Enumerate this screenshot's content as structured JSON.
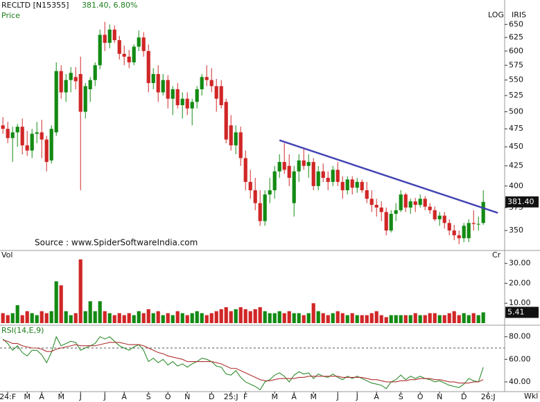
{
  "header": {
    "symbol": "RECLTD [N15355]",
    "quote": "381.40, 6.80%",
    "panel_price": "Price",
    "scale_mode": "LOG",
    "provider": "IRIS",
    "panel_volume": "Vol",
    "volume_unit": "Cr",
    "panel_rsi": "RSI(14,E,9)",
    "source": "Source : www.SpiderSoftwareIndia.com",
    "period": "Wkl"
  },
  "chart_data": [
    {
      "type": "candlestick",
      "log": true,
      "colors": {
        "up": "#138a13",
        "down": "#d02626"
      },
      "xlim": [
        -0.6,
        103.4
      ],
      "ylim": [
        331,
        678
      ],
      "yticks": [
        350,
        375,
        400,
        425,
        450,
        475,
        500,
        525,
        550,
        575,
        600,
        625,
        650
      ],
      "last_close_label": "381.40",
      "trendline": {
        "x": [
          57,
          102
        ],
        "y": [
          459,
          369
        ],
        "color": "#4444b4"
      },
      "open": [
        480,
        475,
        462,
        470,
        478,
        452,
        445,
        468,
        470,
        460,
        432,
        470,
        565,
        530,
        550,
        555,
        560,
        500,
        535,
        550,
        575,
        630,
        615,
        640,
        620,
        595,
        590,
        580,
        608,
        625,
        600,
        545,
        560,
        530,
        550,
        520,
        535,
        510,
        520,
        505,
        515,
        535,
        555,
        550,
        540,
        540,
        515,
        480,
        452,
        470,
        435,
        405,
        395,
        380,
        360,
        390,
        395,
        418,
        430,
        425,
        380,
        418,
        432,
        425,
        430,
        400,
        418,
        410,
        405,
        420,
        405,
        395,
        408,
        398,
        405,
        395,
        385,
        378,
        375,
        370,
        350,
        368,
        372,
        390,
        375,
        382,
        378,
        385,
        376,
        372,
        362,
        366,
        358,
        350,
        345,
        342,
        342,
        358,
        357,
        358
      ],
      "high": [
        492,
        485,
        478,
        482,
        490,
        472,
        475,
        485,
        488,
        465,
        480,
        580,
        575,
        560,
        572,
        572,
        590,
        545,
        555,
        580,
        640,
        655,
        650,
        648,
        628,
        610,
        602,
        612,
        638,
        635,
        612,
        570,
        575,
        560,
        558,
        540,
        545,
        530,
        530,
        520,
        540,
        560,
        575,
        570,
        552,
        550,
        520,
        495,
        480,
        478,
        445,
        420,
        410,
        395,
        395,
        410,
        425,
        440,
        455,
        440,
        425,
        440,
        448,
        440,
        435,
        425,
        428,
        418,
        425,
        430,
        412,
        412,
        412,
        410,
        408,
        405,
        395,
        385,
        382,
        375,
        372,
        380,
        395,
        392,
        385,
        386,
        390,
        388,
        380,
        376,
        370,
        370,
        362,
        356,
        350,
        358,
        362,
        372,
        365,
        395
      ],
      "low": [
        468,
        455,
        430,
        450,
        440,
        438,
        435,
        455,
        435,
        418,
        428,
        465,
        520,
        515,
        530,
        535,
        395,
        490,
        515,
        540,
        568,
        600,
        605,
        615,
        585,
        575,
        570,
        575,
        600,
        590,
        530,
        535,
        515,
        525,
        505,
        495,
        505,
        490,
        495,
        480,
        505,
        525,
        540,
        530,
        500,
        505,
        455,
        445,
        440,
        425,
        395,
        385,
        372,
        355,
        355,
        380,
        385,
        410,
        415,
        400,
        365,
        405,
        420,
        410,
        395,
        395,
        405,
        395,
        400,
        400,
        385,
        390,
        390,
        392,
        392,
        380,
        370,
        365,
        360,
        345,
        348,
        360,
        370,
        370,
        368,
        370,
        375,
        372,
        368,
        360,
        355,
        352,
        345,
        340,
        336,
        338,
        338,
        350,
        350,
        356
      ],
      "close": [
        475,
        462,
        470,
        478,
        452,
        445,
        468,
        470,
        460,
        430,
        475,
        565,
        530,
        550,
        562,
        548,
        500,
        540,
        550,
        575,
        630,
        615,
        640,
        620,
        595,
        590,
        580,
        608,
        625,
        600,
        545,
        560,
        530,
        550,
        520,
        535,
        510,
        520,
        505,
        515,
        535,
        555,
        550,
        540,
        520,
        510,
        460,
        452,
        470,
        435,
        405,
        395,
        380,
        360,
        390,
        395,
        418,
        430,
        420,
        410,
        418,
        432,
        425,
        430,
        400,
        418,
        410,
        405,
        420,
        405,
        395,
        408,
        398,
        405,
        395,
        385,
        378,
        375,
        370,
        350,
        368,
        372,
        390,
        375,
        382,
        378,
        385,
        376,
        372,
        362,
        366,
        358,
        350,
        345,
        342,
        355,
        358,
        357,
        357,
        381.4
      ]
    },
    {
      "type": "bar",
      "xlim": [
        -0.6,
        103.4
      ],
      "ylim": [
        0,
        36.5
      ],
      "yticks": [
        {
          "value": 10,
          "label": "10.00"
        },
        {
          "value": 20,
          "label": "20.00"
        },
        {
          "value": 30,
          "label": "30.00"
        }
      ],
      "values": [
        5,
        4,
        5,
        9,
        4,
        6,
        5,
        4,
        6,
        5,
        6,
        21,
        19,
        6,
        4,
        5,
        32,
        6,
        11,
        6,
        11,
        6,
        5,
        4,
        5,
        4,
        5,
        4,
        6,
        5,
        7,
        5,
        6,
        4,
        5,
        4,
        6,
        5,
        4,
        5,
        6,
        5,
        4,
        5,
        6,
        7,
        8,
        6,
        7,
        8,
        7,
        6,
        7,
        8,
        6,
        5,
        5,
        6,
        5,
        6,
        5,
        5,
        4,
        5,
        10,
        6,
        5,
        4,
        5,
        6,
        5,
        4,
        5,
        4,
        4,
        4,
        5,
        6,
        4,
        3,
        4,
        4,
        4,
        4,
        4,
        5,
        4,
        4,
        5,
        5,
        4,
        4,
        5,
        6,
        4,
        5,
        4,
        5,
        4,
        5.41
      ]
    },
    {
      "type": "line",
      "xlim": [
        -0.6,
        103.4
      ],
      "ylim": [
        32,
        89
      ],
      "reference_line": 70,
      "yticks": [
        {
          "value": 40,
          "label": "40.00"
        },
        {
          "value": 60,
          "label": "60.00"
        },
        {
          "value": 80,
          "label": "80.00"
        }
      ],
      "xticks": [
        {
          "value": 1,
          "label": "24:F"
        },
        {
          "value": 5,
          "label": "M"
        },
        {
          "value": 8,
          "label": "A"
        },
        {
          "value": 12,
          "label": "M"
        },
        {
          "value": 16,
          "label": "J"
        },
        {
          "value": 21,
          "label": "J"
        },
        {
          "value": 25,
          "label": "A"
        },
        {
          "value": 30,
          "label": "S"
        },
        {
          "value": 34,
          "label": "O"
        },
        {
          "value": 38,
          "label": "N"
        },
        {
          "value": 43,
          "label": "D"
        },
        {
          "value": 47,
          "label": "25:J"
        },
        {
          "value": 50,
          "label": "F"
        },
        {
          "value": 56,
          "label": "M"
        },
        {
          "value": 60,
          "label": "A"
        },
        {
          "value": 64,
          "label": "M"
        },
        {
          "value": 69,
          "label": "J"
        },
        {
          "value": 73,
          "label": "J"
        },
        {
          "value": 77,
          "label": "A"
        },
        {
          "value": 82,
          "label": "S"
        },
        {
          "value": 86,
          "label": "O"
        },
        {
          "value": 90,
          "label": "N"
        },
        {
          "value": 95,
          "label": "D"
        },
        {
          "value": 100,
          "label": "26:J"
        }
      ],
      "series": [
        {
          "color": "#2e8b2e",
          "values": [
            78,
            74,
            68,
            72,
            66,
            63,
            68,
            68,
            64,
            57,
            66,
            80,
            72,
            74,
            76,
            75,
            68,
            70,
            72,
            74,
            80,
            78,
            80,
            76,
            72,
            70,
            68,
            71,
            73,
            68,
            58,
            61,
            57,
            60,
            55,
            58,
            54,
            56,
            53,
            56,
            58,
            61,
            60,
            58,
            54,
            53,
            47,
            46,
            50,
            44,
            40,
            38,
            36,
            33,
            40,
            42,
            46,
            48,
            45,
            40,
            46,
            49,
            47,
            48,
            43,
            47,
            45,
            44,
            47,
            44,
            42,
            45,
            43,
            45,
            43,
            41,
            39,
            38,
            37,
            34,
            40,
            42,
            46,
            42,
            45,
            43,
            45,
            43,
            42,
            40,
            41,
            39,
            37,
            36,
            35,
            38,
            43,
            41,
            40,
            53
          ]
        },
        {
          "color": "#b03030",
          "values": [
            77,
            76,
            74,
            74,
            72,
            71,
            70,
            70,
            69,
            67,
            67,
            69,
            70,
            71,
            72,
            73,
            72,
            72,
            72,
            72,
            73,
            74,
            75,
            75,
            75,
            74,
            73,
            73,
            73,
            72,
            70,
            68,
            66,
            65,
            63,
            62,
            61,
            60,
            58,
            58,
            58,
            58,
            58,
            58,
            57,
            56,
            54,
            52,
            52,
            50,
            48,
            46,
            44,
            42,
            41,
            41,
            42,
            43,
            43,
            43,
            43,
            44,
            44,
            45,
            45,
            45,
            45,
            45,
            45,
            45,
            44,
            44,
            44,
            44,
            44,
            43,
            42,
            42,
            41,
            40,
            40,
            40,
            41,
            41,
            42,
            42,
            43,
            43,
            43,
            42,
            42,
            41,
            40,
            40,
            39,
            39,
            39,
            40,
            40,
            42
          ]
        }
      ]
    }
  ]
}
